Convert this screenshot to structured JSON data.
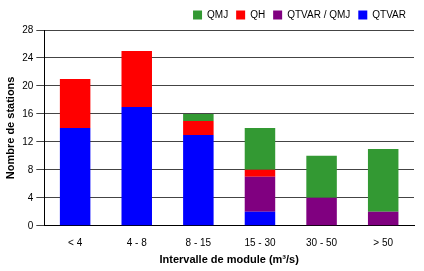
{
  "chart_data": {
    "type": "bar",
    "stacked": true,
    "x_label": "Intervalle de module (m³/s)",
    "y_label": "Nombre de stations",
    "categories": [
      "< 4",
      "4 - 8",
      "8 - 15",
      "15 - 30",
      "30 - 50",
      "> 50"
    ],
    "series": [
      {
        "name": "QTVAR",
        "color": "#0000ff",
        "values": [
          14,
          17,
          13,
          2,
          0,
          0
        ]
      },
      {
        "name": "QTVAR / QMJ",
        "color": "#800080",
        "values": [
          0,
          0,
          0,
          5,
          4,
          2
        ]
      },
      {
        "name": "QH",
        "color": "#ff0000",
        "values": [
          7,
          8,
          2,
          1,
          0,
          0
        ]
      },
      {
        "name": "QMJ",
        "color": "#339933",
        "values": [
          0,
          0,
          1,
          6,
          6,
          9
        ]
      }
    ],
    "ylim": [
      0,
      28
    ],
    "yticks": [
      0,
      4,
      8,
      12,
      16,
      20,
      24,
      28
    ],
    "grid": true,
    "legend": "top"
  }
}
